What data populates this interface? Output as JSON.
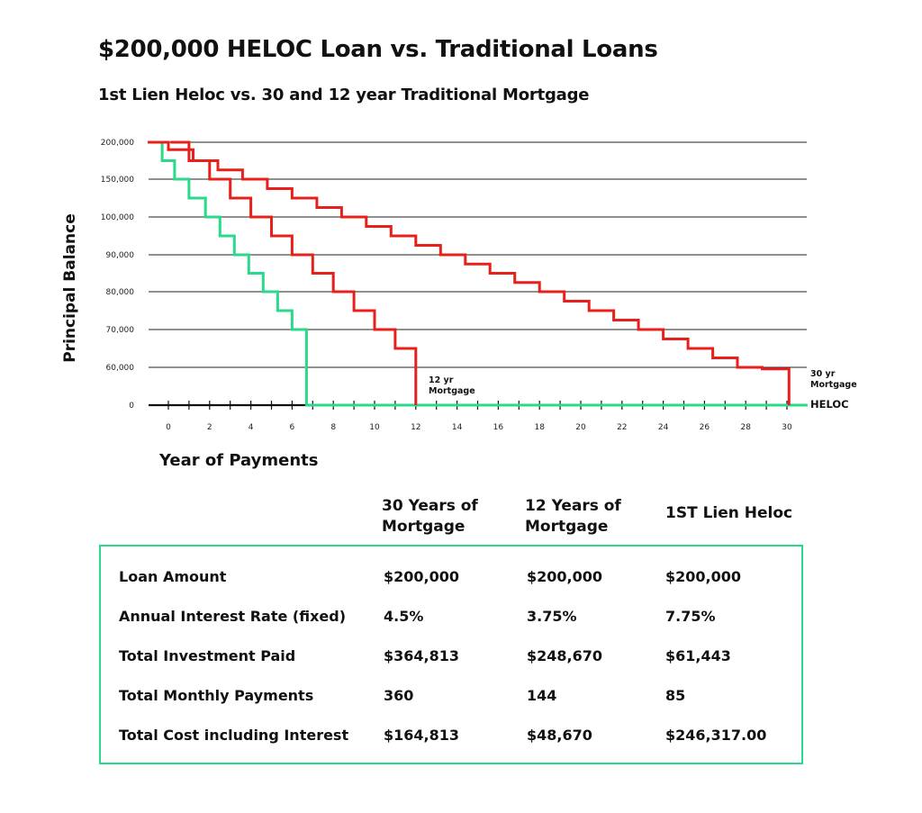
{
  "title": "$200,000 HELOC Loan vs. Traditional Loans",
  "subtitle": "1st Lien Heloc vs. 30 and 12 year Traditional Mortgage",
  "chart_data": {
    "type": "line",
    "title": "$200,000 HELOC Loan vs. Traditional Loans",
    "subtitle": "1st Lien Heloc vs. 30 and 12 year Traditional Mortgage",
    "xlabel": "Year of Payments",
    "ylabel": "Principal Balance",
    "x_ticks": [
      "0",
      "2",
      "4",
      "6",
      "8",
      "10",
      "12",
      "14",
      "16",
      "18",
      "20",
      "22",
      "24",
      "26",
      "28",
      "30"
    ],
    "y_ticks": [
      "0",
      "60,000",
      "70,000",
      "80,000",
      "90,000",
      "100,000",
      "150,000",
      "200,000"
    ],
    "xlim": [
      -1,
      31
    ],
    "grid": true,
    "step_style": "staircase",
    "series": [
      {
        "name": "30 yr Mortgage",
        "color": "#e8201c",
        "x": [
          -1,
          0,
          1.2,
          2.4,
          3.6,
          4.8,
          6,
          7.2,
          8.4,
          9.6,
          10.8,
          12,
          13.2,
          14.4,
          15.6,
          16.8,
          18,
          19.2,
          20.4,
          21.6,
          22.8,
          24,
          25.2,
          26.4,
          27.6,
          28.8,
          30.1
        ],
        "y": [
          200000,
          190000,
          175000,
          162500,
          150000,
          137500,
          125000,
          112500,
          100000,
          97500,
          95000,
          92500,
          90000,
          87500,
          85000,
          82500,
          80000,
          77500,
          75000,
          72500,
          70000,
          67500,
          65000,
          62500,
          60000,
          57500,
          55000
        ]
      },
      {
        "name": "12 yr Mortgage",
        "color": "#e8201c",
        "x": [
          0.1,
          1,
          2,
          3,
          4,
          5,
          6,
          7,
          8,
          9,
          10,
          11,
          12
        ],
        "y": [
          200000,
          175000,
          150000,
          125000,
          100000,
          95000,
          90000,
          85000,
          80000,
          75000,
          70000,
          65000,
          60000
        ]
      },
      {
        "name": "HELOC",
        "color": "#2bd98a",
        "x": [
          -1,
          -0.3,
          0.3,
          1,
          1.8,
          2.5,
          3.2,
          3.9,
          4.6,
          5.3,
          6,
          6.7
        ],
        "y": [
          200000,
          175000,
          150000,
          125000,
          100000,
          95000,
          90000,
          85000,
          80000,
          75000,
          70000,
          65000
        ]
      }
    ],
    "annotations": [
      {
        "text": "12 yr Mortgage",
        "lines": [
          "12 yr",
          "Mortgage"
        ]
      },
      {
        "text": "30 yr Mortgage",
        "lines": [
          "30 yr",
          "Mortgage"
        ]
      },
      {
        "text": "HELOC",
        "lines": [
          "HELOC"
        ]
      }
    ]
  },
  "table": {
    "headers": [
      "30 Years of\nMortgage",
      "12 Years of\nMortgage",
      "1ST Lien Heloc"
    ],
    "rows": [
      {
        "label": "Loan Amount",
        "values": [
          "$200,000",
          "$200,000",
          "$200,000"
        ]
      },
      {
        "label": "Annual Interest Rate (fixed)",
        "values": [
          "4.5%",
          "3.75%",
          "7.75%"
        ]
      },
      {
        "label": "Total Investment Paid",
        "values": [
          "$364,813",
          "$248,670",
          "$61,443"
        ]
      },
      {
        "label": "Total Monthly Payments",
        "values": [
          "360",
          "144",
          "85"
        ]
      },
      {
        "label": "Total Cost including Interest",
        "values": [
          "$164,813",
          "$48,670",
          "$246,317.00"
        ]
      }
    ],
    "border_color": "#2bd98a"
  }
}
